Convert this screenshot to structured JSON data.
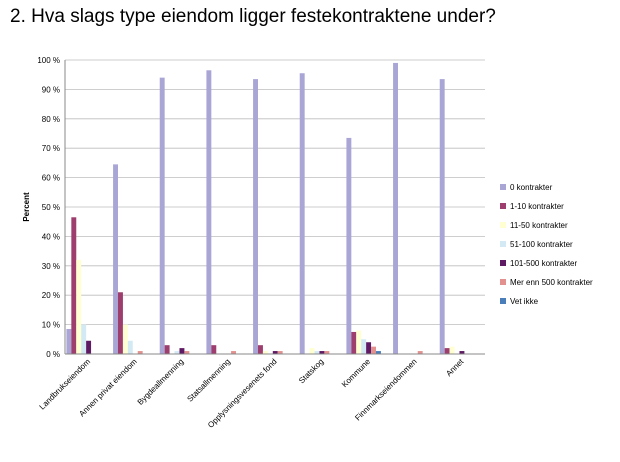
{
  "chart_data": {
    "type": "bar",
    "title": "2. Hva slags type eiendom ligger festekontraktene under?",
    "ylabel": "Percent",
    "xlabel": "",
    "ylim": [
      0,
      100
    ],
    "yticks": [
      "0 %",
      "10 %",
      "20 %",
      "30 %",
      "40 %",
      "50 %",
      "60 %",
      "70 %",
      "80 %",
      "90 %",
      "100 %"
    ],
    "grid": true,
    "legend_position": "right",
    "categories": [
      "Landbrukseiendom",
      "Annen privat eiendom",
      "Bygdeallmenning",
      "Statsallmenning",
      "Opplysningsvesenets fond",
      "Statskog",
      "Kommune",
      "Finnmarkseiendommen",
      "Annet"
    ],
    "series": [
      {
        "name": "0 kontrakter",
        "color": "#A9A6D6",
        "values": [
          8.5,
          64.5,
          94,
          96.5,
          93.5,
          95.5,
          73.5,
          99,
          93.5
        ]
      },
      {
        "name": "1-10 kontrakter",
        "color": "#9E3E6E",
        "values": [
          46.5,
          21,
          3,
          3,
          3,
          0,
          7.5,
          0,
          2
        ]
      },
      {
        "name": "11-50 kontrakter",
        "color": "#FFFFD2",
        "values": [
          32,
          10,
          0,
          0,
          1,
          2,
          8,
          0,
          2.5
        ]
      },
      {
        "name": "51-100 kontrakter",
        "color": "#D3EAF5",
        "values": [
          10,
          4.5,
          1,
          0,
          0,
          1,
          5,
          0,
          0
        ]
      },
      {
        "name": "101-500 kontrakter",
        "color": "#5E1A63",
        "values": [
          4.5,
          0,
          2,
          0,
          1,
          1,
          4,
          0,
          1
        ]
      },
      {
        "name": "Mer enn 500 kontrakter",
        "color": "#E2918F",
        "values": [
          0,
          1,
          1,
          1,
          1,
          1,
          2.5,
          1,
          0
        ]
      },
      {
        "name": "Vet ikke",
        "color": "#4A7EBB",
        "values": [
          0,
          0,
          0,
          0,
          0,
          0,
          1,
          0,
          0
        ]
      }
    ]
  }
}
